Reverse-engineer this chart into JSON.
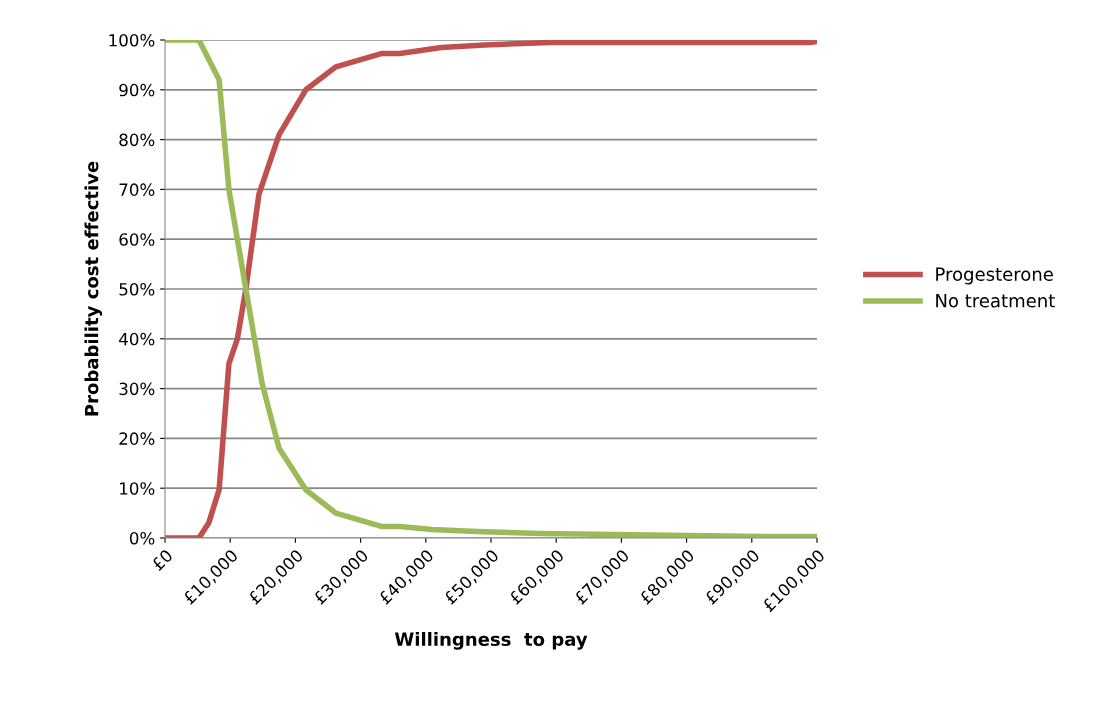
{
  "chart_data": {
    "type": "line",
    "xlabel": "Willingness  to pay",
    "ylabel": "Probability cost effective",
    "xlim": [
      0,
      100000
    ],
    "xticks": [
      {
        "value": 0,
        "label": "£0"
      },
      {
        "value": 10000,
        "label": "£10,000"
      },
      {
        "value": 20000,
        "label": "£20,000"
      },
      {
        "value": 30000,
        "label": "£30,000"
      },
      {
        "value": 40000,
        "label": "£40,000"
      },
      {
        "value": 50000,
        "label": "£50,000"
      },
      {
        "value": 60000,
        "label": "£60,000"
      },
      {
        "value": 70000,
        "label": "£70,000"
      },
      {
        "value": 80000,
        "label": "£80,000"
      },
      {
        "value": 90000,
        "label": "£90,000"
      },
      {
        "value": 100000,
        "label": "£100,000"
      }
    ],
    "ylim": [
      0,
      100
    ],
    "yticks": [
      {
        "value": 0,
        "label": "0%"
      },
      {
        "value": 10,
        "label": "10%"
      },
      {
        "value": 20,
        "label": "20%"
      },
      {
        "value": 30,
        "label": "30%"
      },
      {
        "value": 40,
        "label": "40%"
      },
      {
        "value": 50,
        "label": "50%"
      },
      {
        "value": 60,
        "label": "60%"
      },
      {
        "value": 70,
        "label": "70%"
      },
      {
        "value": 80,
        "label": "80%"
      },
      {
        "value": 90,
        "label": "90%"
      },
      {
        "value": 100,
        "label": "100%"
      }
    ],
    "grid": "y",
    "legend": "right",
    "marker": "none",
    "line_style": "solid",
    "series": [
      {
        "name": "Progesterone",
        "color": "#c0504d",
        "x": [
          0,
          5200,
          6700,
          8300,
          9800,
          11100,
          12400,
          14400,
          17500,
          21600,
          26200,
          33300,
          36000,
          42400,
          49000,
          59000,
          98900,
          100000
        ],
        "values": [
          0,
          0,
          3,
          9.7,
          35,
          40,
          50,
          69,
          81,
          90,
          94.6,
          97.3,
          97.3,
          98.5,
          99.0,
          99.5,
          99.5,
          99.7
        ]
      },
      {
        "name": "No treatment",
        "color": "#9bbb59",
        "x": [
          0,
          5200,
          8300,
          9800,
          11100,
          12400,
          14900,
          17500,
          21600,
          26200,
          33300,
          36000,
          41000,
          47800,
          57500,
          92300,
          100000
        ],
        "values": [
          100,
          100,
          92,
          70,
          60,
          50,
          31,
          18,
          9.7,
          5,
          2.3,
          2.3,
          1.7,
          1.3,
          0.9,
          0.3,
          0.3
        ]
      }
    ]
  }
}
